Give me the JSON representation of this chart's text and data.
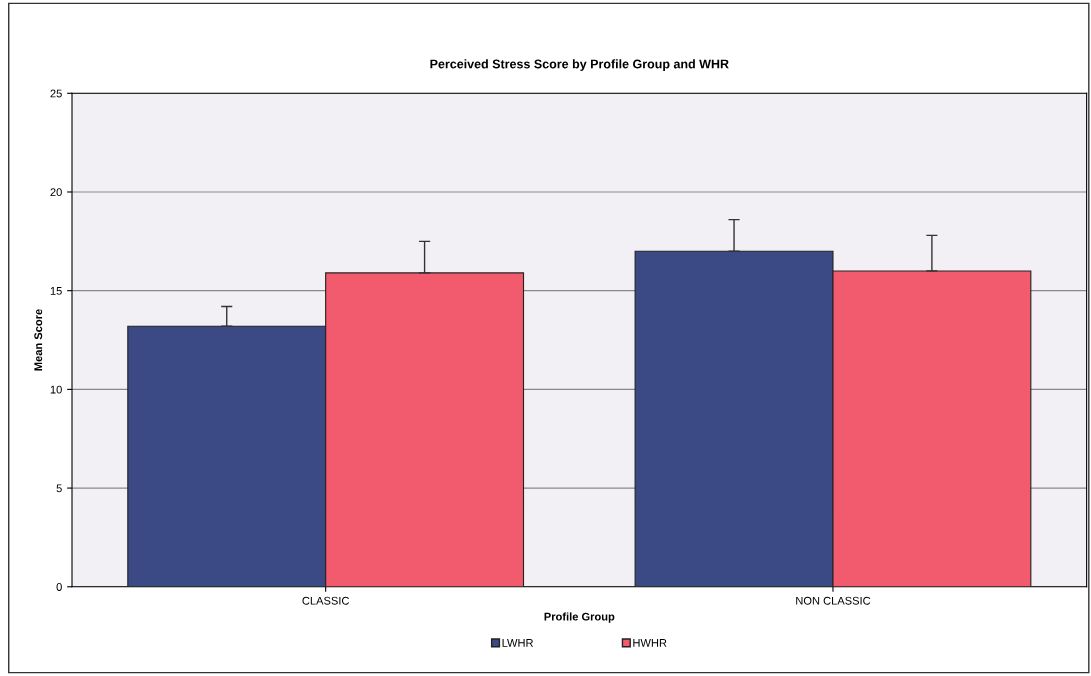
{
  "chart_data": {
    "type": "bar",
    "title": "Perceived Stress Score by Profile Group and WHR",
    "xlabel": "Profile Group",
    "ylabel": "Mean Score",
    "categories": [
      "CLASSIC",
      "NON CLASSIC"
    ],
    "series": [
      {
        "name": "LWHR",
        "color": "#3b4a85",
        "values": [
          13.2,
          17.0
        ],
        "errors": [
          [
            13.2,
            14.2
          ],
          [
            17.0,
            18.6
          ]
        ]
      },
      {
        "name": "HWHR",
        "color": "#f25a6e",
        "values": [
          15.9,
          16.0
        ],
        "errors": [
          [
            15.9,
            17.5
          ],
          [
            16.0,
            17.8
          ]
        ]
      }
    ],
    "ylim": [
      0,
      25
    ],
    "yticks": [
      0,
      5,
      10,
      15,
      20,
      25
    ],
    "grid": "y",
    "legend": "bottom"
  }
}
